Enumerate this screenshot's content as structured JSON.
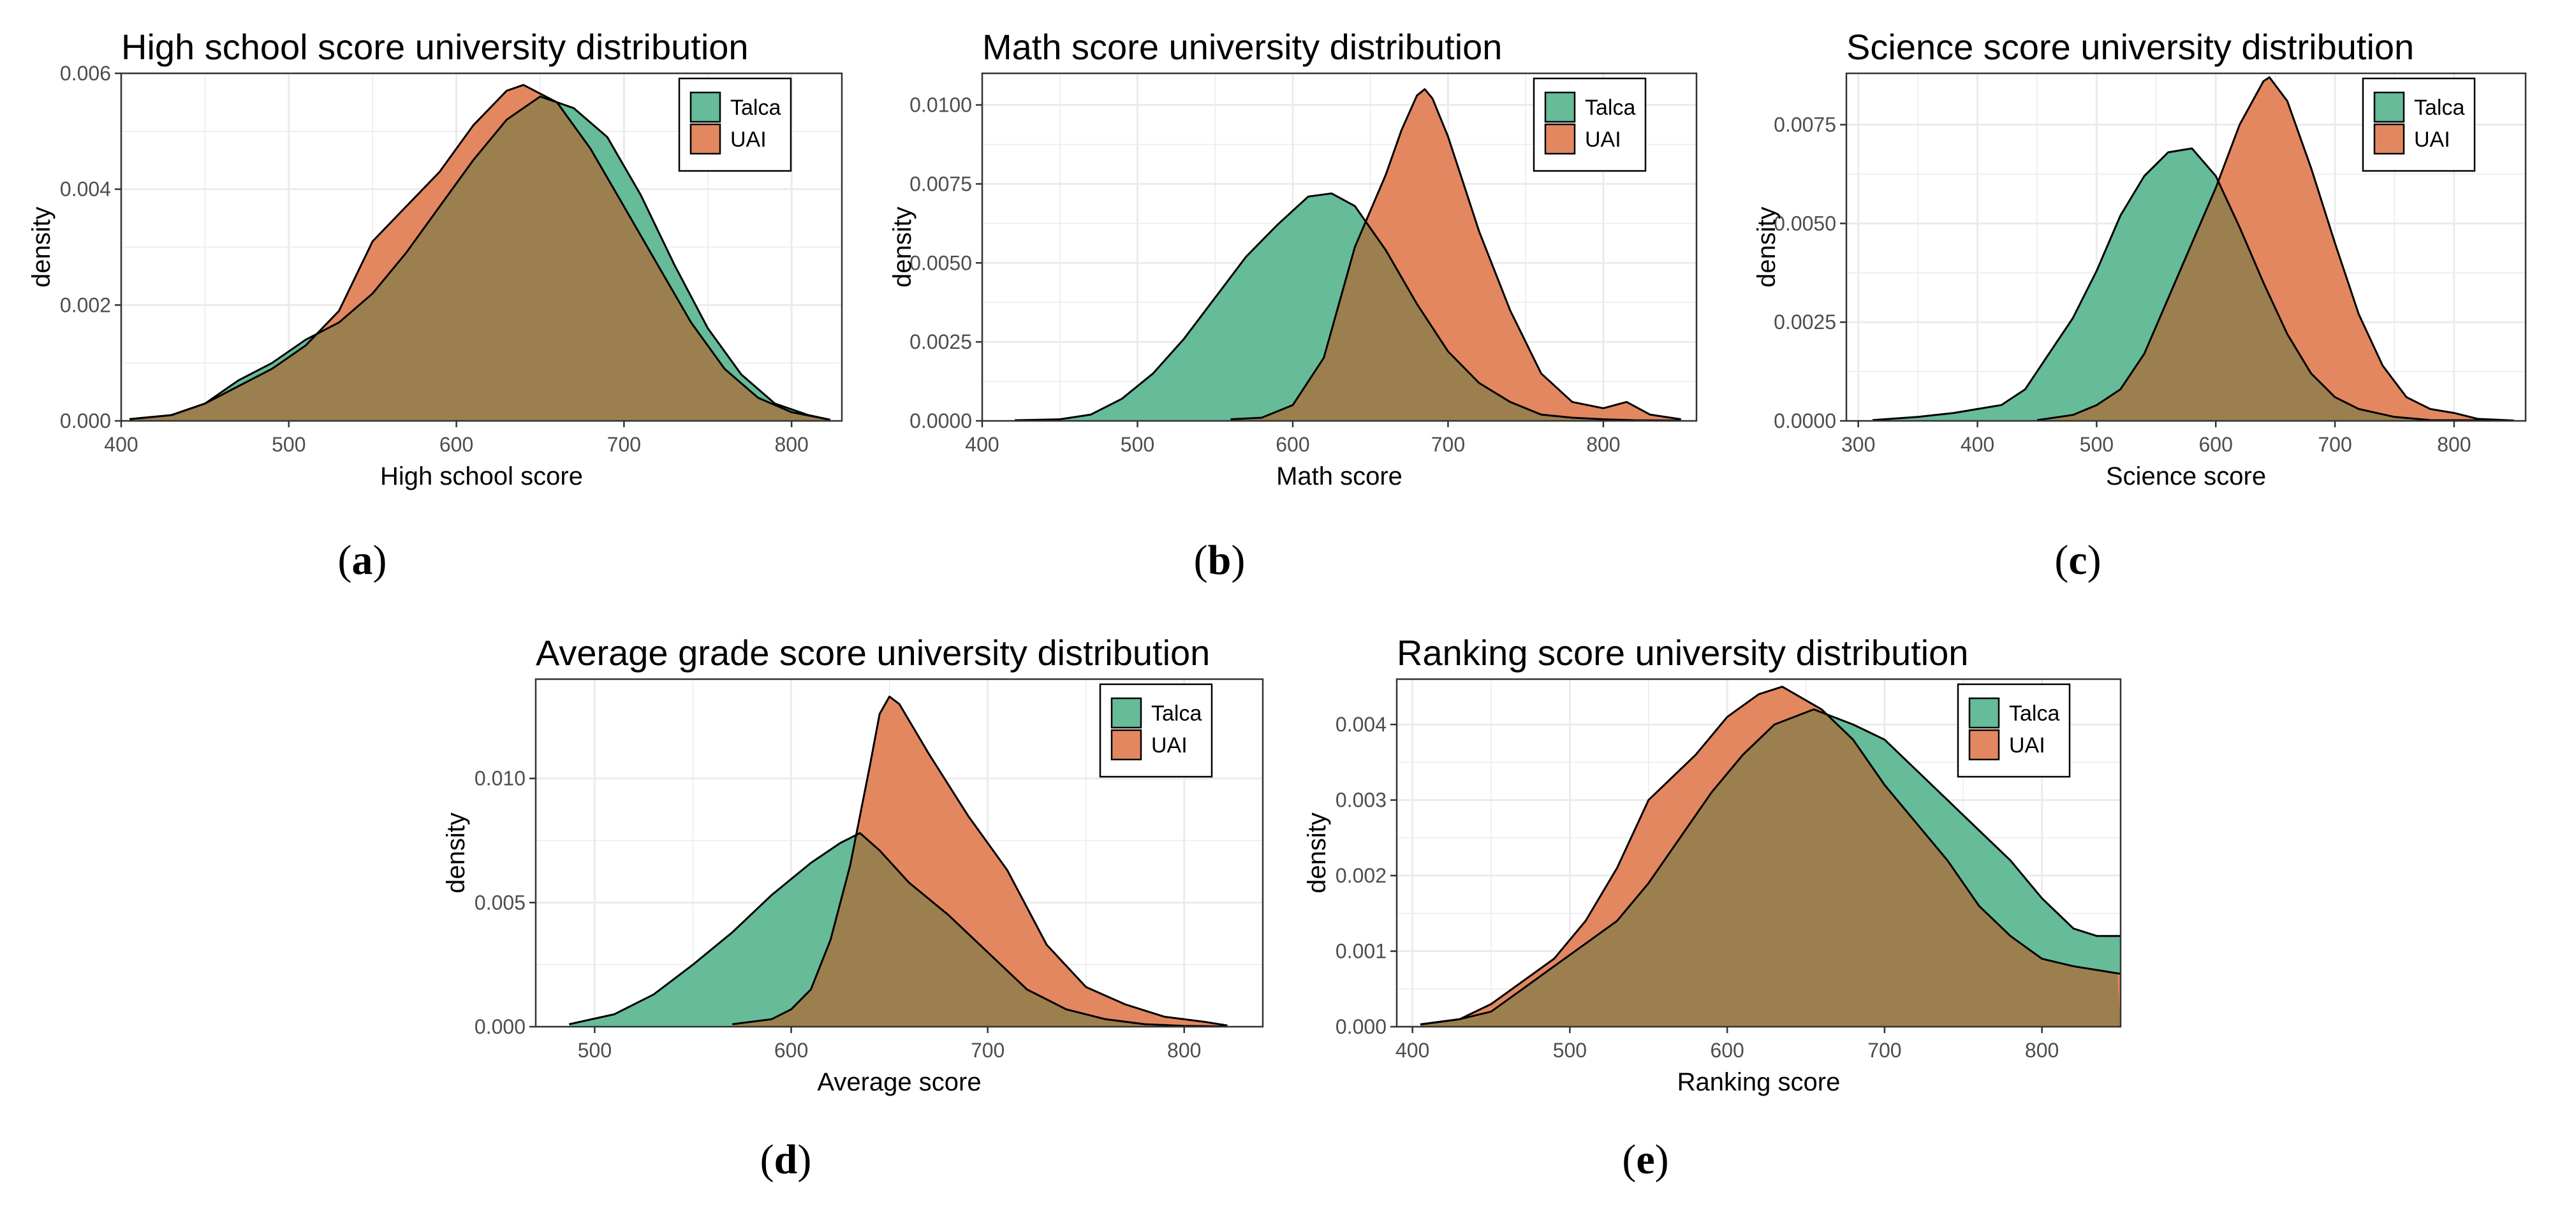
{
  "colors": {
    "talca": "#66BB99",
    "uai": "#E38760",
    "overlap": "#9C7F4E",
    "grid": "#EBEBEB",
    "frame": "#333333"
  },
  "legend": [
    "Talca",
    "UAI"
  ],
  "chart_data": [
    {
      "type": "area",
      "title": "High school score university distribution",
      "xlabel": "High school score",
      "ylabel": "density",
      "caption": "a",
      "xlim": [
        400,
        830
      ],
      "ylim": [
        0,
        0.006
      ],
      "xticks": [
        400,
        500,
        600,
        700,
        800
      ],
      "yticks": [
        0,
        0.002,
        0.004,
        0.006
      ],
      "ytick_labels": [
        "0.000",
        "0.002",
        "0.004",
        "0.006"
      ],
      "series": [
        {
          "name": "Talca",
          "x": [
            405,
            430,
            450,
            470,
            490,
            510,
            530,
            550,
            570,
            590,
            610,
            630,
            650,
            670,
            690,
            710,
            730,
            750,
            770,
            790,
            810,
            823
          ],
          "y": [
            3e-05,
            0.0001,
            0.0003,
            0.0007,
            0.001,
            0.0014,
            0.0017,
            0.0022,
            0.0029,
            0.0037,
            0.0045,
            0.0052,
            0.0056,
            0.0054,
            0.0049,
            0.0039,
            0.0027,
            0.0016,
            0.0008,
            0.0003,
            0.0001,
            2e-05
          ]
        },
        {
          "name": "UAI",
          "x": [
            405,
            430,
            450,
            470,
            490,
            510,
            530,
            550,
            570,
            590,
            610,
            630,
            640,
            660,
            680,
            700,
            720,
            740,
            760,
            780,
            800,
            823
          ],
          "y": [
            3e-05,
            0.0001,
            0.0003,
            0.0006,
            0.0009,
            0.0013,
            0.0019,
            0.0031,
            0.0037,
            0.0043,
            0.0051,
            0.0057,
            0.0058,
            0.0055,
            0.0047,
            0.0037,
            0.0027,
            0.0017,
            0.0009,
            0.0004,
            0.00015,
            2e-05
          ]
        }
      ]
    },
    {
      "type": "area",
      "title": "Math score university distribution",
      "xlabel": "Math score",
      "ylabel": "density",
      "caption": "b",
      "xlim": [
        400,
        860
      ],
      "ylim": [
        0,
        0.011
      ],
      "xticks": [
        400,
        500,
        600,
        700,
        800
      ],
      "yticks": [
        0,
        0.0025,
        0.005,
        0.0075,
        0.01
      ],
      "ytick_labels": [
        "0.0000",
        "0.0025",
        "0.0050",
        "0.0075",
        "0.0100"
      ],
      "series": [
        {
          "name": "Talca",
          "x": [
            421,
            450,
            470,
            490,
            510,
            530,
            550,
            570,
            590,
            610,
            625,
            640,
            660,
            680,
            700,
            720,
            740,
            760,
            780,
            800,
            820,
            850
          ],
          "y": [
            2e-05,
            5e-05,
            0.0002,
            0.0007,
            0.0015,
            0.0026,
            0.0039,
            0.0052,
            0.0062,
            0.0071,
            0.0072,
            0.0068,
            0.0054,
            0.0037,
            0.0022,
            0.0012,
            0.0006,
            0.0002,
            0.0001,
            5e-05,
            2e-05,
            1e-05
          ]
        },
        {
          "name": "UAI",
          "x": [
            560,
            580,
            600,
            620,
            640,
            660,
            670,
            680,
            685,
            690,
            700,
            710,
            720,
            740,
            760,
            780,
            800,
            815,
            830,
            850
          ],
          "y": [
            5e-05,
            0.0001,
            0.0005,
            0.002,
            0.0055,
            0.0078,
            0.0092,
            0.0103,
            0.0105,
            0.0102,
            0.009,
            0.0075,
            0.006,
            0.0035,
            0.0015,
            0.0006,
            0.0004,
            0.0006,
            0.0002,
            5e-05
          ]
        }
      ]
    },
    {
      "type": "area",
      "title": "Science score university distribution",
      "xlabel": "Science score",
      "ylabel": "density",
      "caption": "c",
      "xlim": [
        290,
        860
      ],
      "ylim": [
        0,
        0.0088
      ],
      "xticks": [
        300,
        400,
        500,
        600,
        700,
        800
      ],
      "yticks": [
        0,
        0.0025,
        0.005,
        0.0075
      ],
      "ytick_labels": [
        "0.0000",
        "0.0025",
        "0.0050",
        "0.0075"
      ],
      "series": [
        {
          "name": "Talca",
          "x": [
            312,
            350,
            380,
            400,
            420,
            440,
            460,
            480,
            500,
            520,
            540,
            560,
            580,
            600,
            620,
            640,
            660,
            680,
            700,
            720,
            750,
            780,
            850
          ],
          "y": [
            2e-05,
            0.0001,
            0.0002,
            0.0003,
            0.0004,
            0.0008,
            0.0017,
            0.0026,
            0.0038,
            0.0052,
            0.0062,
            0.0068,
            0.0069,
            0.0062,
            0.0049,
            0.0035,
            0.0022,
            0.0012,
            0.0006,
            0.0003,
            0.0001,
            2e-05,
            1e-05
          ]
        },
        {
          "name": "UAI",
          "x": [
            450,
            480,
            500,
            520,
            540,
            560,
            580,
            600,
            620,
            640,
            645,
            660,
            680,
            700,
            720,
            740,
            760,
            780,
            800,
            820,
            850
          ],
          "y": [
            2e-05,
            0.00015,
            0.0004,
            0.0008,
            0.0017,
            0.0031,
            0.0045,
            0.0059,
            0.0075,
            0.0086,
            0.0087,
            0.0081,
            0.0064,
            0.0045,
            0.0027,
            0.0014,
            0.0006,
            0.0003,
            0.0002,
            5e-05,
            1e-05
          ]
        }
      ]
    },
    {
      "type": "area",
      "title": "Average grade score university distribution",
      "xlabel": "Average score",
      "ylabel": "density",
      "caption": "d",
      "xlim": [
        470,
        840
      ],
      "ylim": [
        0,
        0.014
      ],
      "xticks": [
        500,
        600,
        700,
        800
      ],
      "yticks": [
        0,
        0.005,
        0.01
      ],
      "ytick_labels": [
        "0.000",
        "0.005",
        "0.010"
      ],
      "series": [
        {
          "name": "Talca",
          "x": [
            487,
            510,
            530,
            550,
            570,
            590,
            610,
            625,
            635,
            645,
            660,
            680,
            700,
            720,
            740,
            760,
            780,
            800,
            822
          ],
          "y": [
            0.0001,
            0.0005,
            0.0013,
            0.0025,
            0.0038,
            0.0053,
            0.0066,
            0.0074,
            0.0078,
            0.0071,
            0.0058,
            0.0045,
            0.003,
            0.0015,
            0.0007,
            0.0003,
            0.0001,
            3e-05,
            1e-05
          ]
        },
        {
          "name": "UAI",
          "x": [
            570,
            590,
            600,
            610,
            620,
            630,
            640,
            645,
            650,
            655,
            670,
            690,
            710,
            730,
            750,
            770,
            790,
            810,
            822
          ],
          "y": [
            0.0001,
            0.0003,
            0.0007,
            0.0015,
            0.0035,
            0.0065,
            0.0105,
            0.0126,
            0.0133,
            0.013,
            0.011,
            0.0085,
            0.0063,
            0.0033,
            0.0016,
            0.0009,
            0.0004,
            0.0002,
            5e-05
          ]
        }
      ]
    },
    {
      "type": "area",
      "title": "Ranking score university distribution",
      "xlabel": "Ranking score",
      "ylabel": "density",
      "caption": "e",
      "xlim": [
        390,
        850
      ],
      "ylim": [
        0,
        0.0046
      ],
      "xticks": [
        400,
        500,
        600,
        700,
        800
      ],
      "yticks": [
        0,
        0.001,
        0.002,
        0.003,
        0.004
      ],
      "ytick_labels": [
        "0.000",
        "0.001",
        "0.002",
        "0.003",
        "0.004"
      ],
      "series": [
        {
          "name": "Talca",
          "x": [
            405,
            430,
            450,
            470,
            490,
            510,
            530,
            550,
            570,
            590,
            610,
            630,
            655,
            680,
            700,
            720,
            740,
            760,
            780,
            800,
            820,
            835,
            850
          ],
          "y": [
            3e-05,
            0.0001,
            0.0002,
            0.0005,
            0.0008,
            0.0011,
            0.0014,
            0.0019,
            0.0025,
            0.0031,
            0.0036,
            0.004,
            0.0042,
            0.004,
            0.0038,
            0.0034,
            0.003,
            0.0026,
            0.0022,
            0.0017,
            0.0013,
            0.0012,
            0.0012
          ]
        },
        {
          "name": "UAI",
          "x": [
            405,
            430,
            450,
            470,
            490,
            510,
            530,
            550,
            565,
            580,
            600,
            620,
            635,
            660,
            680,
            700,
            720,
            740,
            760,
            780,
            800,
            820,
            850
          ],
          "y": [
            3e-05,
            0.0001,
            0.0003,
            0.0006,
            0.0009,
            0.0014,
            0.0021,
            0.003,
            0.0033,
            0.0036,
            0.0041,
            0.0044,
            0.0045,
            0.0042,
            0.0038,
            0.0032,
            0.0027,
            0.0022,
            0.0016,
            0.0012,
            0.0009,
            0.0008,
            0.0007
          ]
        }
      ]
    }
  ]
}
